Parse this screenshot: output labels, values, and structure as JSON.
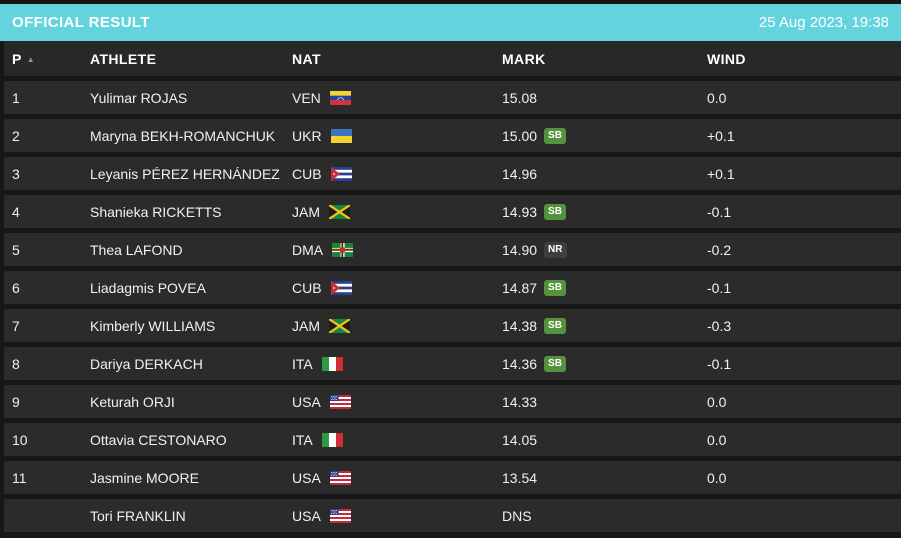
{
  "title_bar": {
    "title": "OFFICIAL RESULT",
    "datetime": "25 Aug 2023, 19:38"
  },
  "icons": {
    "sort_asc": "▲"
  },
  "colors": {
    "accent_teal": "#63d3de",
    "row_bg": "#2b2b2b",
    "header_bg": "#282828"
  },
  "table": {
    "columns": [
      "P",
      "ATHLETE",
      "NAT",
      "MARK",
      "WIND"
    ],
    "sort": {
      "column": "P",
      "direction": "asc"
    },
    "badge_colors": {
      "SB": "#55923d",
      "NR": "#3e3e3e"
    },
    "rows": [
      {
        "pos": "1",
        "athlete": "Yulimar ROJAS",
        "nat": "VEN",
        "mark": "15.08",
        "badge": "",
        "wind": "0.0"
      },
      {
        "pos": "2",
        "athlete": "Maryna BEKH-ROMANCHUK",
        "nat": "UKR",
        "mark": "15.00",
        "badge": "SB",
        "wind": "+0.1"
      },
      {
        "pos": "3",
        "athlete": "Leyanis PÉREZ HERNÁNDEZ",
        "nat": "CUB",
        "mark": "14.96",
        "badge": "",
        "wind": "+0.1"
      },
      {
        "pos": "4",
        "athlete": "Shanieka RICKETTS",
        "nat": "JAM",
        "mark": "14.93",
        "badge": "SB",
        "wind": "-0.1"
      },
      {
        "pos": "5",
        "athlete": "Thea LAFOND",
        "nat": "DMA",
        "mark": "14.90",
        "badge": "NR",
        "wind": "-0.2"
      },
      {
        "pos": "6",
        "athlete": "Liadagmis POVEA",
        "nat": "CUB",
        "mark": "14.87",
        "badge": "SB",
        "wind": "-0.1"
      },
      {
        "pos": "7",
        "athlete": "Kimberly WILLIAMS",
        "nat": "JAM",
        "mark": "14.38",
        "badge": "SB",
        "wind": "-0.3"
      },
      {
        "pos": "8",
        "athlete": "Dariya DERKACH",
        "nat": "ITA",
        "mark": "14.36",
        "badge": "SB",
        "wind": "-0.1"
      },
      {
        "pos": "9",
        "athlete": "Keturah ORJI",
        "nat": "USA",
        "mark": "14.33",
        "badge": "",
        "wind": "0.0"
      },
      {
        "pos": "10",
        "athlete": "Ottavia CESTONARO",
        "nat": "ITA",
        "mark": "14.05",
        "badge": "",
        "wind": "0.0"
      },
      {
        "pos": "11",
        "athlete": "Jasmine MOORE",
        "nat": "USA",
        "mark": "13.54",
        "badge": "",
        "wind": "0.0"
      },
      {
        "pos": "",
        "athlete": "Tori FRANKLIN",
        "nat": "USA",
        "mark": "DNS",
        "badge": "",
        "wind": ""
      }
    ]
  }
}
